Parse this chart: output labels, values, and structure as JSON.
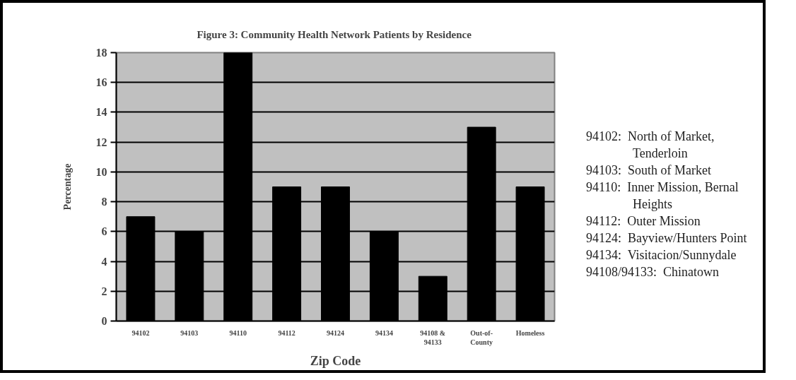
{
  "chart_data": {
    "type": "bar",
    "title": "Figure 3:  Community Health Network Patients by Residence",
    "xlabel": "Zip Code",
    "ylabel": "Percentage",
    "categories": [
      "94102",
      "94103",
      "94110",
      "94112",
      "94124",
      "94134",
      "94108 &\n94133",
      "Out-of-\nCounty",
      "Homeless"
    ],
    "values": [
      7,
      6,
      18,
      9,
      9,
      6,
      3,
      13,
      9
    ],
    "color": "#000000",
    "ylim": [
      0,
      18
    ],
    "yticks": [
      0,
      2,
      4,
      6,
      8,
      10,
      12,
      14,
      16,
      18
    ],
    "grid": "y",
    "annotations": [
      "94102:  North of Market, Tenderloin",
      "94103:  South of Market",
      "94110:  Inner Mission, Bernal Heights",
      "94112:  Outer Mission",
      "94124:  Bayview/Hunters Point",
      "94134:  Visitacion/Sunnydale",
      "94108/94133:  Chinatown"
    ]
  }
}
